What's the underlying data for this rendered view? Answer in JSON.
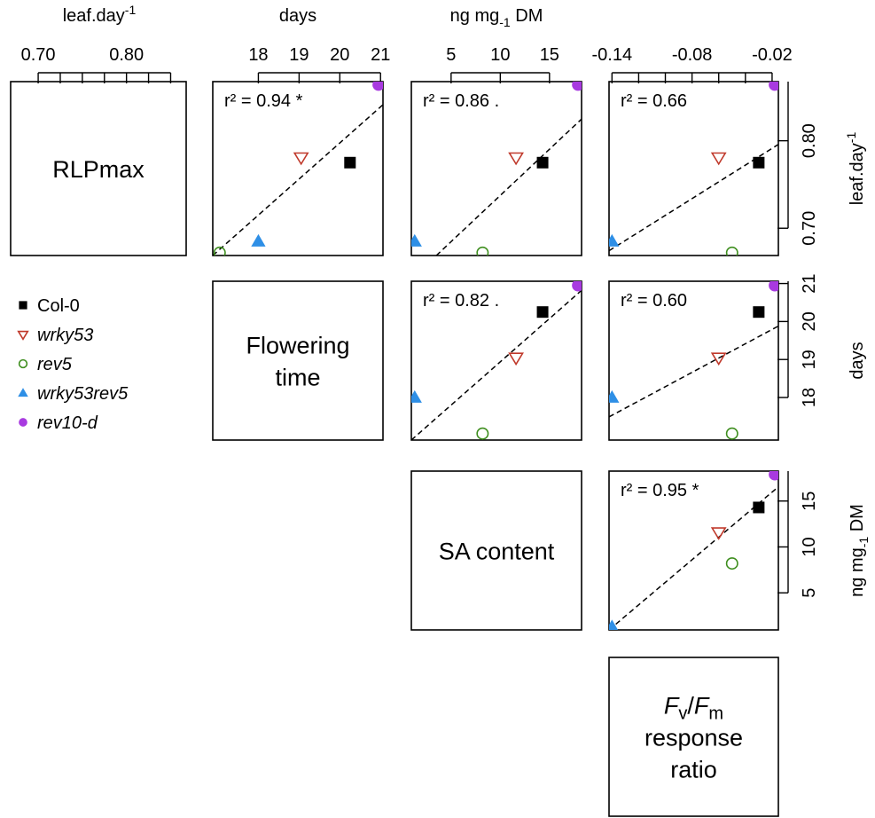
{
  "legend": {
    "entries": [
      {
        "name": "Col-0",
        "marker": "filled-square",
        "color": "#000000",
        "italic": false
      },
      {
        "name": "wrky53",
        "marker": "open-triangle-down",
        "color": "#c0392b",
        "italic": true
      },
      {
        "name": "rev5",
        "marker": "open-circle",
        "color": "#3e8e1e",
        "italic": true
      },
      {
        "name": "wrky53rev5",
        "marker": "filled-triangle-up",
        "color": "#2e8fe6",
        "italic": true
      },
      {
        "name": "rev10-d",
        "marker": "filled-circle",
        "color": "#a83ae0",
        "italic": true
      }
    ]
  },
  "variables": [
    {
      "key": "rlp",
      "label_lines": [
        [
          {
            "t": "RLPmax"
          }
        ]
      ],
      "unit": {
        "base": "leaf.day",
        "sup": "-1"
      },
      "ticks": [
        0.7,
        0.8
      ],
      "tick_labels": [
        "0.70",
        "0.80"
      ],
      "range": [
        0.6688,
        0.8676
      ],
      "minor_ticks": [
        0.7,
        0.725,
        0.75,
        0.775,
        0.8,
        0.825,
        0.85
      ]
    },
    {
      "key": "ft",
      "label_lines": [
        [
          {
            "t": "Flowering"
          }
        ],
        [
          {
            "t": "time"
          }
        ]
      ],
      "unit": {
        "base": "days"
      },
      "ticks": [
        18,
        19,
        20,
        21
      ],
      "tick_labels": [
        "18",
        "19",
        "20",
        "21"
      ],
      "range": [
        16.88,
        21.06
      ]
    },
    {
      "key": "sa",
      "label_lines": [
        [
          {
            "t": "SA content"
          }
        ]
      ],
      "unit": {
        "base": "ng mg",
        "sub": "-1",
        "after": " DM"
      },
      "ticks": [
        5,
        10,
        15
      ],
      "tick_labels": [
        "5",
        "10",
        "15"
      ],
      "range": [
        0.96,
        18.26
      ]
    },
    {
      "key": "fvfm",
      "label_lines": [
        [
          {
            "t": "F",
            "i": true
          },
          {
            "t": "v",
            "i": false,
            "sub": true
          },
          {
            "t": "/",
            "i": false
          },
          {
            "t": "F",
            "i": true
          },
          {
            "t": "m",
            "i": false,
            "sub": true
          }
        ],
        [
          {
            "t": "response"
          }
        ],
        [
          {
            "t": "ratio"
          }
        ]
      ],
      "ticks": [
        -0.14,
        -0.08,
        -0.02
      ],
      "tick_labels": [
        "-0.14",
        "-0.08",
        "-0.02"
      ],
      "range": [
        -0.1422,
        -0.0153
      ],
      "minor_ticks": [
        -0.14,
        -0.12,
        -0.1,
        -0.08,
        -0.06,
        -0.04,
        -0.02
      ]
    }
  ],
  "chart_data": {
    "type": "scatter",
    "genotypes": [
      "Col-0",
      "wrky53",
      "rev5",
      "wrky53rev5",
      "rev10-d"
    ],
    "values": {
      "rlp": [
        0.775,
        0.781,
        0.672,
        0.685,
        0.864
      ],
      "ft": [
        20.25,
        19.05,
        17.05,
        18.0,
        20.95
      ],
      "sa": [
        14.3,
        11.6,
        8.2,
        1.3,
        17.9
      ],
      "fvfm": [
        -0.03,
        -0.06,
        -0.05,
        -0.14,
        -0.018
      ]
    },
    "panels": [
      {
        "row": 0,
        "col": 1,
        "r2_label": "r² = 0.94 *",
        "fit": [
          [
            16.88,
            0.6688
          ],
          [
            21.06,
            0.8412
          ]
        ]
      },
      {
        "row": 0,
        "col": 2,
        "r2_label": "r² = 0.86 .",
        "fit": [
          [
            3.5,
            0.6688
          ],
          [
            18.26,
            0.8248
          ]
        ]
      },
      {
        "row": 0,
        "col": 3,
        "r2_label": "r² = 0.66",
        "fit": [
          [
            -0.1422,
            0.6743
          ],
          [
            -0.0153,
            0.7958
          ]
        ]
      },
      {
        "row": 1,
        "col": 2,
        "r2_label": "r² = 0.82 .",
        "fit": [
          [
            0.96,
            16.88
          ],
          [
            18.26,
            20.82
          ]
        ]
      },
      {
        "row": 1,
        "col": 3,
        "r2_label": "r² = 0.60",
        "fit": [
          [
            -0.1422,
            17.49
          ],
          [
            -0.0153,
            19.88
          ]
        ]
      },
      {
        "row": 2,
        "col": 3,
        "r2_label": "r² = 0.95 *",
        "fit": [
          [
            -0.1422,
            0.96
          ],
          [
            -0.0153,
            16.55
          ]
        ]
      }
    ],
    "fit_style": "dashed"
  }
}
